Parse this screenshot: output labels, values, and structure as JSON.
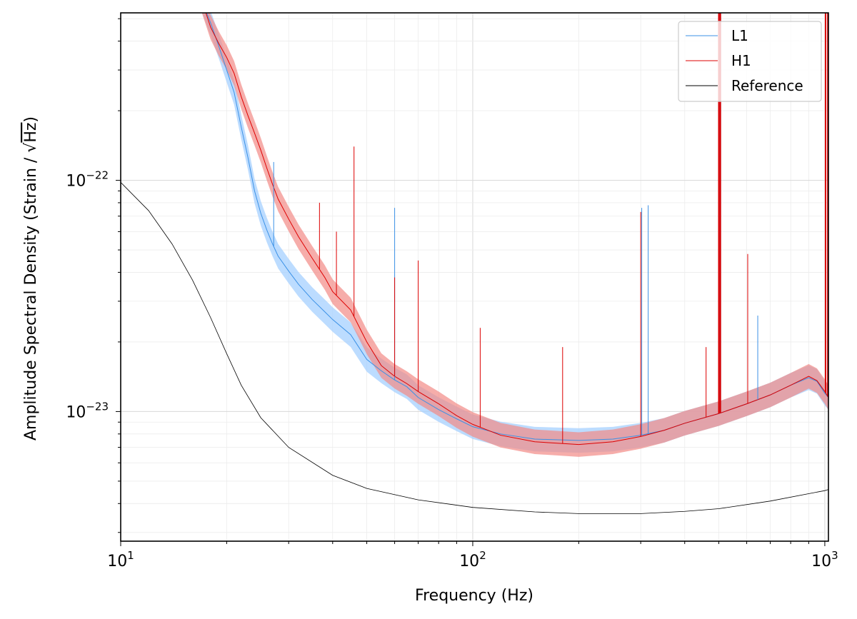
{
  "chart_data": {
    "type": "line",
    "title": "",
    "xlabel": "Frequency (Hz)",
    "ylabel_main": "Amplitude Spectral Density (Strain / ",
    "ylabel_radical": "√",
    "ylabel_unit": "Hz",
    "ylabel_close": ")",
    "x_scale": "log",
    "y_scale": "log",
    "xlim": [
      10,
      1024
    ],
    "ylim": [
      2.75e-24,
      5.3e-22
    ],
    "grid": "on (major and minor, light)",
    "legend_position": "top-right",
    "x_major_ticks": [
      {
        "value": 10,
        "base": "10",
        "exp": "1"
      },
      {
        "value": 100,
        "base": "10",
        "exp": "2"
      },
      {
        "value": 1000,
        "base": "10",
        "exp": "3"
      }
    ],
    "y_major_ticks": [
      {
        "value": 1e-23,
        "base": "10",
        "exp": "−23"
      },
      {
        "value": 1e-22,
        "base": "10",
        "exp": "−22"
      }
    ],
    "series": [
      {
        "name": "L1",
        "color": "#3b91e6",
        "band_color": "#a6d0ff",
        "curve": [
          [
            17,
            6e-22
          ],
          [
            18,
            4.8e-22
          ],
          [
            19,
            3.8e-22
          ],
          [
            20,
            3e-22
          ],
          [
            21,
            2.4e-22
          ],
          [
            22,
            1.7e-22
          ],
          [
            23,
            1.25e-22
          ],
          [
            24,
            9e-23
          ],
          [
            25,
            7.2e-23
          ],
          [
            26,
            6.1e-23
          ],
          [
            27,
            5.3e-23
          ],
          [
            28,
            4.7e-23
          ],
          [
            30,
            4.05e-23
          ],
          [
            32,
            3.55e-23
          ],
          [
            35,
            3.05e-23
          ],
          [
            38,
            2.7e-23
          ],
          [
            40,
            2.5e-23
          ],
          [
            45,
            2.15e-23
          ],
          [
            50,
            1.68e-23
          ],
          [
            55,
            1.5e-23
          ],
          [
            60,
            1.37e-23
          ],
          [
            65,
            1.28e-23
          ],
          [
            70,
            1.15e-23
          ],
          [
            80,
            1.02e-23
          ],
          [
            90,
            9.3e-24
          ],
          [
            100,
            8.6e-24
          ],
          [
            120,
            8e-24
          ],
          [
            150,
            7.6e-24
          ],
          [
            200,
            7.5e-24
          ],
          [
            250,
            7.6e-24
          ],
          [
            300,
            7.9e-24
          ],
          [
            350,
            8.3e-24
          ],
          [
            400,
            8.9e-24
          ],
          [
            500,
            9.8e-24
          ],
          [
            600,
            1.08e-23
          ],
          [
            700,
            1.18e-23
          ],
          [
            800,
            1.3e-23
          ],
          [
            900,
            1.4e-23
          ],
          [
            950,
            1.35e-23
          ],
          [
            1000,
            1.2e-23
          ],
          [
            1024,
            1.15e-23
          ]
        ],
        "band_factor": 1.13
      },
      {
        "name": "H1",
        "color": "#dd0000",
        "band_color": "#f28a86",
        "curve": [
          [
            17,
            6e-22
          ],
          [
            18,
            4.6e-22
          ],
          [
            19,
            3.9e-22
          ],
          [
            20,
            3.4e-22
          ],
          [
            21,
            2.9e-22
          ],
          [
            22,
            2.3e-22
          ],
          [
            23,
            1.9e-22
          ],
          [
            24,
            1.6e-22
          ],
          [
            25,
            1.35e-22
          ],
          [
            26,
            1.13e-22
          ],
          [
            27,
            9.6e-23
          ],
          [
            28,
            8.3e-23
          ],
          [
            30,
            6.8e-23
          ],
          [
            32,
            5.7e-23
          ],
          [
            35,
            4.6e-23
          ],
          [
            38,
            3.8e-23
          ],
          [
            40,
            3.3e-23
          ],
          [
            45,
            2.75e-23
          ],
          [
            50,
            2e-23
          ],
          [
            55,
            1.58e-23
          ],
          [
            60,
            1.42e-23
          ],
          [
            65,
            1.32e-23
          ],
          [
            70,
            1.22e-23
          ],
          [
            80,
            1.08e-23
          ],
          [
            90,
            9.6e-24
          ],
          [
            100,
            8.8e-24
          ],
          [
            120,
            7.9e-24
          ],
          [
            150,
            7.4e-24
          ],
          [
            200,
            7.2e-24
          ],
          [
            250,
            7.4e-24
          ],
          [
            300,
            7.8e-24
          ],
          [
            350,
            8.3e-24
          ],
          [
            400,
            8.9e-24
          ],
          [
            500,
            9.8e-24
          ],
          [
            600,
            1.08e-23
          ],
          [
            700,
            1.18e-23
          ],
          [
            800,
            1.3e-23
          ],
          [
            900,
            1.42e-23
          ],
          [
            950,
            1.36e-23
          ],
          [
            1000,
            1.22e-23
          ],
          [
            1024,
            1.15e-23
          ]
        ],
        "band_factor": 1.13
      },
      {
        "name": "Reference",
        "color": "#000000",
        "curve": [
          [
            10,
            9.8e-23
          ],
          [
            12,
            7.4e-23
          ],
          [
            14,
            5.3e-23
          ],
          [
            16,
            3.7e-23
          ],
          [
            18,
            2.55e-23
          ],
          [
            20,
            1.78e-23
          ],
          [
            22,
            1.3e-23
          ],
          [
            25,
            9.4e-24
          ],
          [
            30,
            7e-24
          ],
          [
            40,
            5.3e-24
          ],
          [
            50,
            4.65e-24
          ],
          [
            70,
            4.15e-24
          ],
          [
            100,
            3.85e-24
          ],
          [
            150,
            3.68e-24
          ],
          [
            200,
            3.62e-24
          ],
          [
            300,
            3.62e-24
          ],
          [
            400,
            3.7e-24
          ],
          [
            500,
            3.8e-24
          ],
          [
            700,
            4.1e-24
          ],
          [
            1000,
            4.55e-24
          ],
          [
            1024,
            4.6e-24
          ]
        ]
      }
    ],
    "spikes": [
      {
        "series": "L1",
        "f": 27.2,
        "peak": 1.2e-22
      },
      {
        "series": "L1",
        "f": 60,
        "peak": 7.6e-23
      },
      {
        "series": "L1",
        "f": 302,
        "peak": 7.6e-23
      },
      {
        "series": "L1",
        "f": 315,
        "peak": 7.8e-23
      },
      {
        "series": "L1",
        "f": 500,
        "peak": 5.3e-22
      },
      {
        "series": "L1",
        "f": 505,
        "peak": 5.3e-22
      },
      {
        "series": "L1",
        "f": 645,
        "peak": 2.6e-23
      },
      {
        "series": "H1",
        "f": 36.7,
        "peak": 8e-23
      },
      {
        "series": "H1",
        "f": 41,
        "peak": 6e-23
      },
      {
        "series": "H1",
        "f": 46,
        "peak": 1.4e-22
      },
      {
        "series": "H1",
        "f": 60,
        "peak": 3.8e-23
      },
      {
        "series": "H1",
        "f": 70,
        "peak": 4.5e-23
      },
      {
        "series": "H1",
        "f": 105,
        "peak": 2.3e-23
      },
      {
        "series": "H1",
        "f": 180,
        "peak": 1.9e-23
      },
      {
        "series": "H1",
        "f": 300,
        "peak": 7.3e-23
      },
      {
        "series": "H1",
        "f": 460,
        "peak": 1.9e-23
      },
      {
        "series": "H1",
        "f": 500,
        "peak": 5.3e-22
      },
      {
        "series": "H1",
        "f": 505,
        "peak": 5.3e-22
      },
      {
        "series": "H1",
        "f": 604,
        "peak": 4.8e-23
      },
      {
        "series": "H1",
        "f": 1005,
        "peak": 5.3e-22
      },
      {
        "series": "H1",
        "f": 1020,
        "peak": 5.3e-22
      }
    ]
  }
}
